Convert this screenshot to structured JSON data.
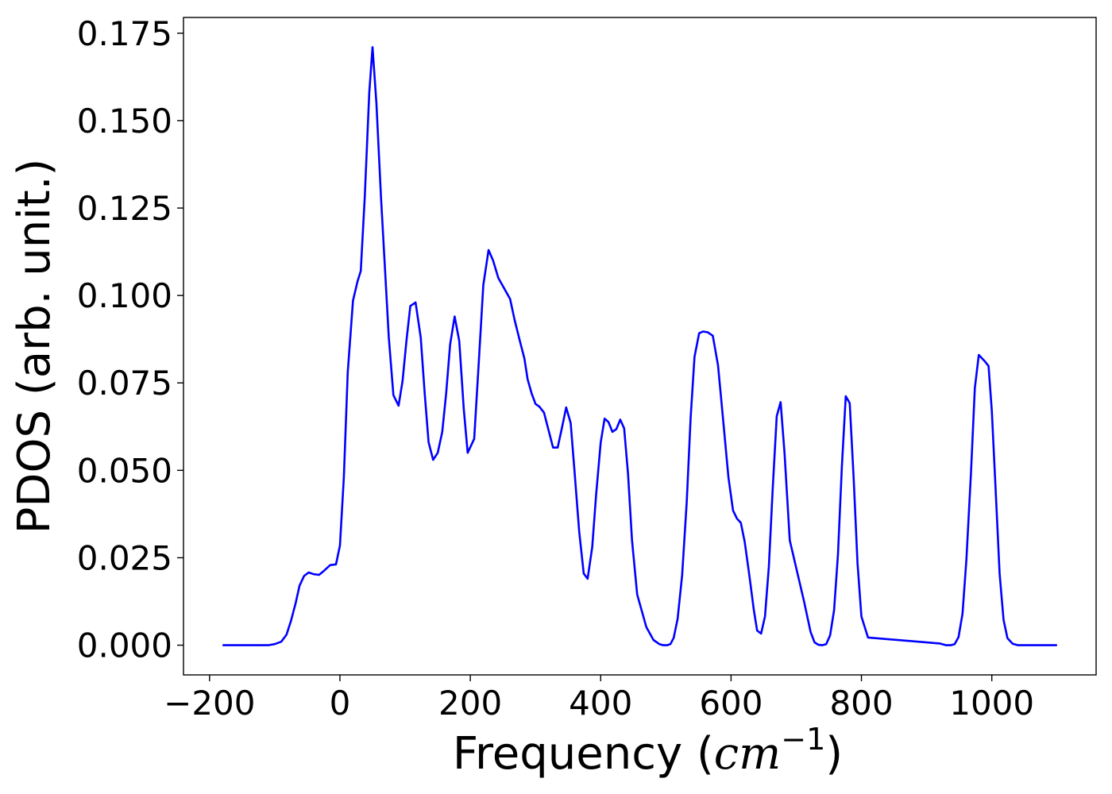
{
  "chart_data": {
    "type": "line",
    "xlabel": "Frequency (",
    "xlabel_math_base": "cm",
    "xlabel_math_exp": "−1",
    "xlabel_close": ")",
    "ylabel": "PDOS (arb. unit.)",
    "xlim": [
      -240,
      1160
    ],
    "ylim": [
      -0.0085,
      0.1795
    ],
    "x_ticks": [
      -200,
      0,
      200,
      400,
      600,
      800,
      1000
    ],
    "x_tick_labels": [
      "−200",
      "0",
      "200",
      "400",
      "600",
      "800",
      "1000"
    ],
    "y_ticks": [
      0.0,
      0.025,
      0.05,
      0.075,
      0.1,
      0.125,
      0.15,
      0.175
    ],
    "y_tick_labels": [
      "0.000",
      "0.025",
      "0.050",
      "0.075",
      "0.100",
      "0.125",
      "0.150",
      "0.175"
    ],
    "grid": false,
    "series": [
      {
        "color": "#0000ff",
        "x": [
          -180,
          -110,
          -100,
          -90,
          -82,
          -75,
          -68,
          -62,
          -55,
          -48,
          -40,
          -32,
          -25,
          -15,
          -6,
          0,
          6,
          12,
          20,
          27,
          32,
          38,
          45,
          50,
          56,
          63,
          75,
          82,
          90,
          96,
          102,
          108,
          116,
          124,
          130,
          136,
          143,
          150,
          157,
          163,
          169,
          176,
          183,
          190,
          196,
          206,
          213,
          220,
          228,
          235,
          243,
          252,
          261,
          268,
          276,
          283,
          288,
          294,
          300,
          306,
          313,
          320,
          327,
          334,
          341,
          347,
          354,
          360,
          367,
          374,
          380,
          387,
          393,
          400,
          406,
          412,
          418,
          424,
          430,
          436,
          442,
          448,
          456,
          470,
          481,
          490,
          496,
          502,
          507,
          512,
          518,
          525,
          532,
          538,
          544,
          551,
          557,
          564,
          572,
          580,
          588,
          596,
          603,
          609,
          615,
          621,
          628,
          635,
          640,
          646,
          652,
          658,
          664,
          670,
          676,
          682,
          690,
          712,
          722,
          728,
          734,
          740,
          746,
          752,
          758,
          764,
          770,
          776,
          782,
          788,
          794,
          800,
          810,
          920,
          930,
          937,
          943,
          949,
          955,
          961,
          968,
          974,
          980,
          985,
          990,
          995,
          1000,
          1006,
          1012,
          1018,
          1024,
          1032,
          1040,
          1060,
          1100
        ],
        "values": [
          0.0,
          0.0,
          0.0003,
          0.001,
          0.003,
          0.007,
          0.012,
          0.017,
          0.0198,
          0.0208,
          0.0203,
          0.0201,
          0.0212,
          0.0229,
          0.0231,
          0.0285,
          0.048,
          0.078,
          0.0985,
          0.104,
          0.107,
          0.128,
          0.158,
          0.171,
          0.155,
          0.128,
          0.088,
          0.0715,
          0.0685,
          0.0755,
          0.087,
          0.097,
          0.098,
          0.088,
          0.072,
          0.058,
          0.053,
          0.055,
          0.061,
          0.072,
          0.086,
          0.094,
          0.087,
          0.0675,
          0.055,
          0.059,
          0.081,
          0.103,
          0.113,
          0.11,
          0.105,
          0.102,
          0.099,
          0.093,
          0.087,
          0.082,
          0.076,
          0.072,
          0.069,
          0.0682,
          0.0665,
          0.0615,
          0.0565,
          0.0565,
          0.0625,
          0.068,
          0.0635,
          0.0495,
          0.0325,
          0.0205,
          0.019,
          0.028,
          0.043,
          0.058,
          0.0648,
          0.0638,
          0.061,
          0.0618,
          0.0645,
          0.062,
          0.049,
          0.03,
          0.0145,
          0.0052,
          0.0015,
          0.0003,
          0.0,
          0.0,
          0.0003,
          0.0021,
          0.0075,
          0.02,
          0.041,
          0.065,
          0.0825,
          0.0892,
          0.0897,
          0.0895,
          0.0885,
          0.08,
          0.064,
          0.048,
          0.0385,
          0.0362,
          0.035,
          0.0295,
          0.02,
          0.01,
          0.0042,
          0.0033,
          0.0082,
          0.0225,
          0.045,
          0.0655,
          0.0695,
          0.055,
          0.03,
          0.0125,
          0.0038,
          0.0008,
          0.0001,
          0.0,
          0.0003,
          0.0028,
          0.01,
          0.026,
          0.051,
          0.0712,
          0.0692,
          0.048,
          0.0235,
          0.0082,
          0.0022,
          0.0005,
          0.0,
          0.0,
          0.0003,
          0.0023,
          0.009,
          0.0245,
          0.049,
          0.0735,
          0.083,
          0.082,
          0.081,
          0.0798,
          0.067,
          0.044,
          0.0205,
          0.0072,
          0.002,
          0.0004,
          0.0,
          0.0,
          0.0
        ]
      }
    ]
  }
}
